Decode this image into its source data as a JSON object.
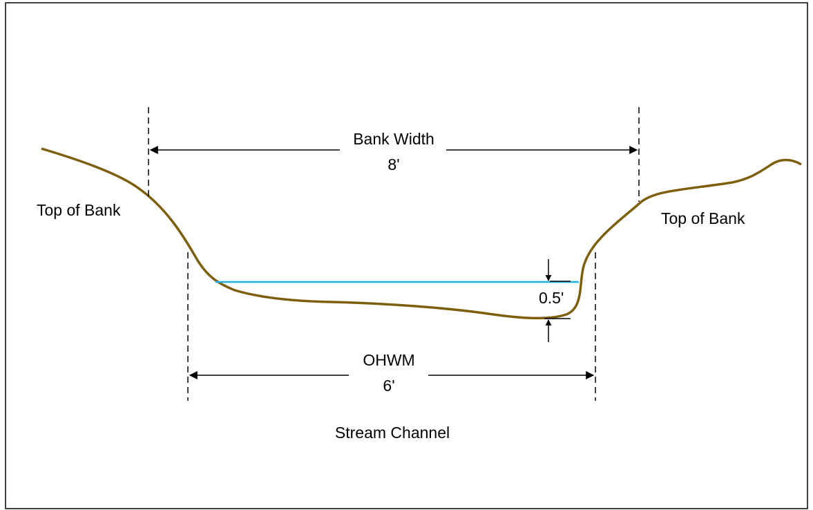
{
  "labels": {
    "bank_width": "Bank Width",
    "bank_width_value": "8'",
    "top_of_bank_left": "Top of Bank",
    "top_of_bank_right": "Top of Bank",
    "depth_value": "0.5'",
    "ohwm": "OHWM",
    "ohwm_value": "6'",
    "stream_channel": "Stream Channel"
  }
}
